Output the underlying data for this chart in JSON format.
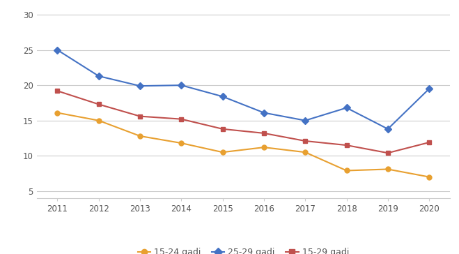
{
  "years": [
    2011,
    2012,
    2013,
    2014,
    2015,
    2016,
    2017,
    2018,
    2019,
    2020
  ],
  "series": {
    "15-24 gadi": {
      "values": [
        16.1,
        15.0,
        12.8,
        11.8,
        10.5,
        11.2,
        10.5,
        7.9,
        8.1,
        7.0
      ],
      "color": "#E8A030",
      "marker": "o",
      "markersize": 5
    },
    "25-29 gadi": {
      "values": [
        25.0,
        21.3,
        19.9,
        20.0,
        18.4,
        16.1,
        15.0,
        16.8,
        13.8,
        19.5
      ],
      "color": "#4472C4",
      "marker": "D",
      "markersize": 5
    },
    "15-29 gadi": {
      "values": [
        19.2,
        17.3,
        15.6,
        15.2,
        13.8,
        13.2,
        12.1,
        11.5,
        10.4,
        11.9
      ],
      "color": "#C0504D",
      "marker": "s",
      "markersize": 5
    }
  },
  "ylim": [
    4,
    31
  ],
  "yticks": [
    5,
    10,
    15,
    20,
    25,
    30
  ],
  "grid_color": "#CCCCCC",
  "background_color": "#FFFFFF",
  "legend_order": [
    "15-24 gadi",
    "25-29 gadi",
    "15-29 gadi"
  ]
}
